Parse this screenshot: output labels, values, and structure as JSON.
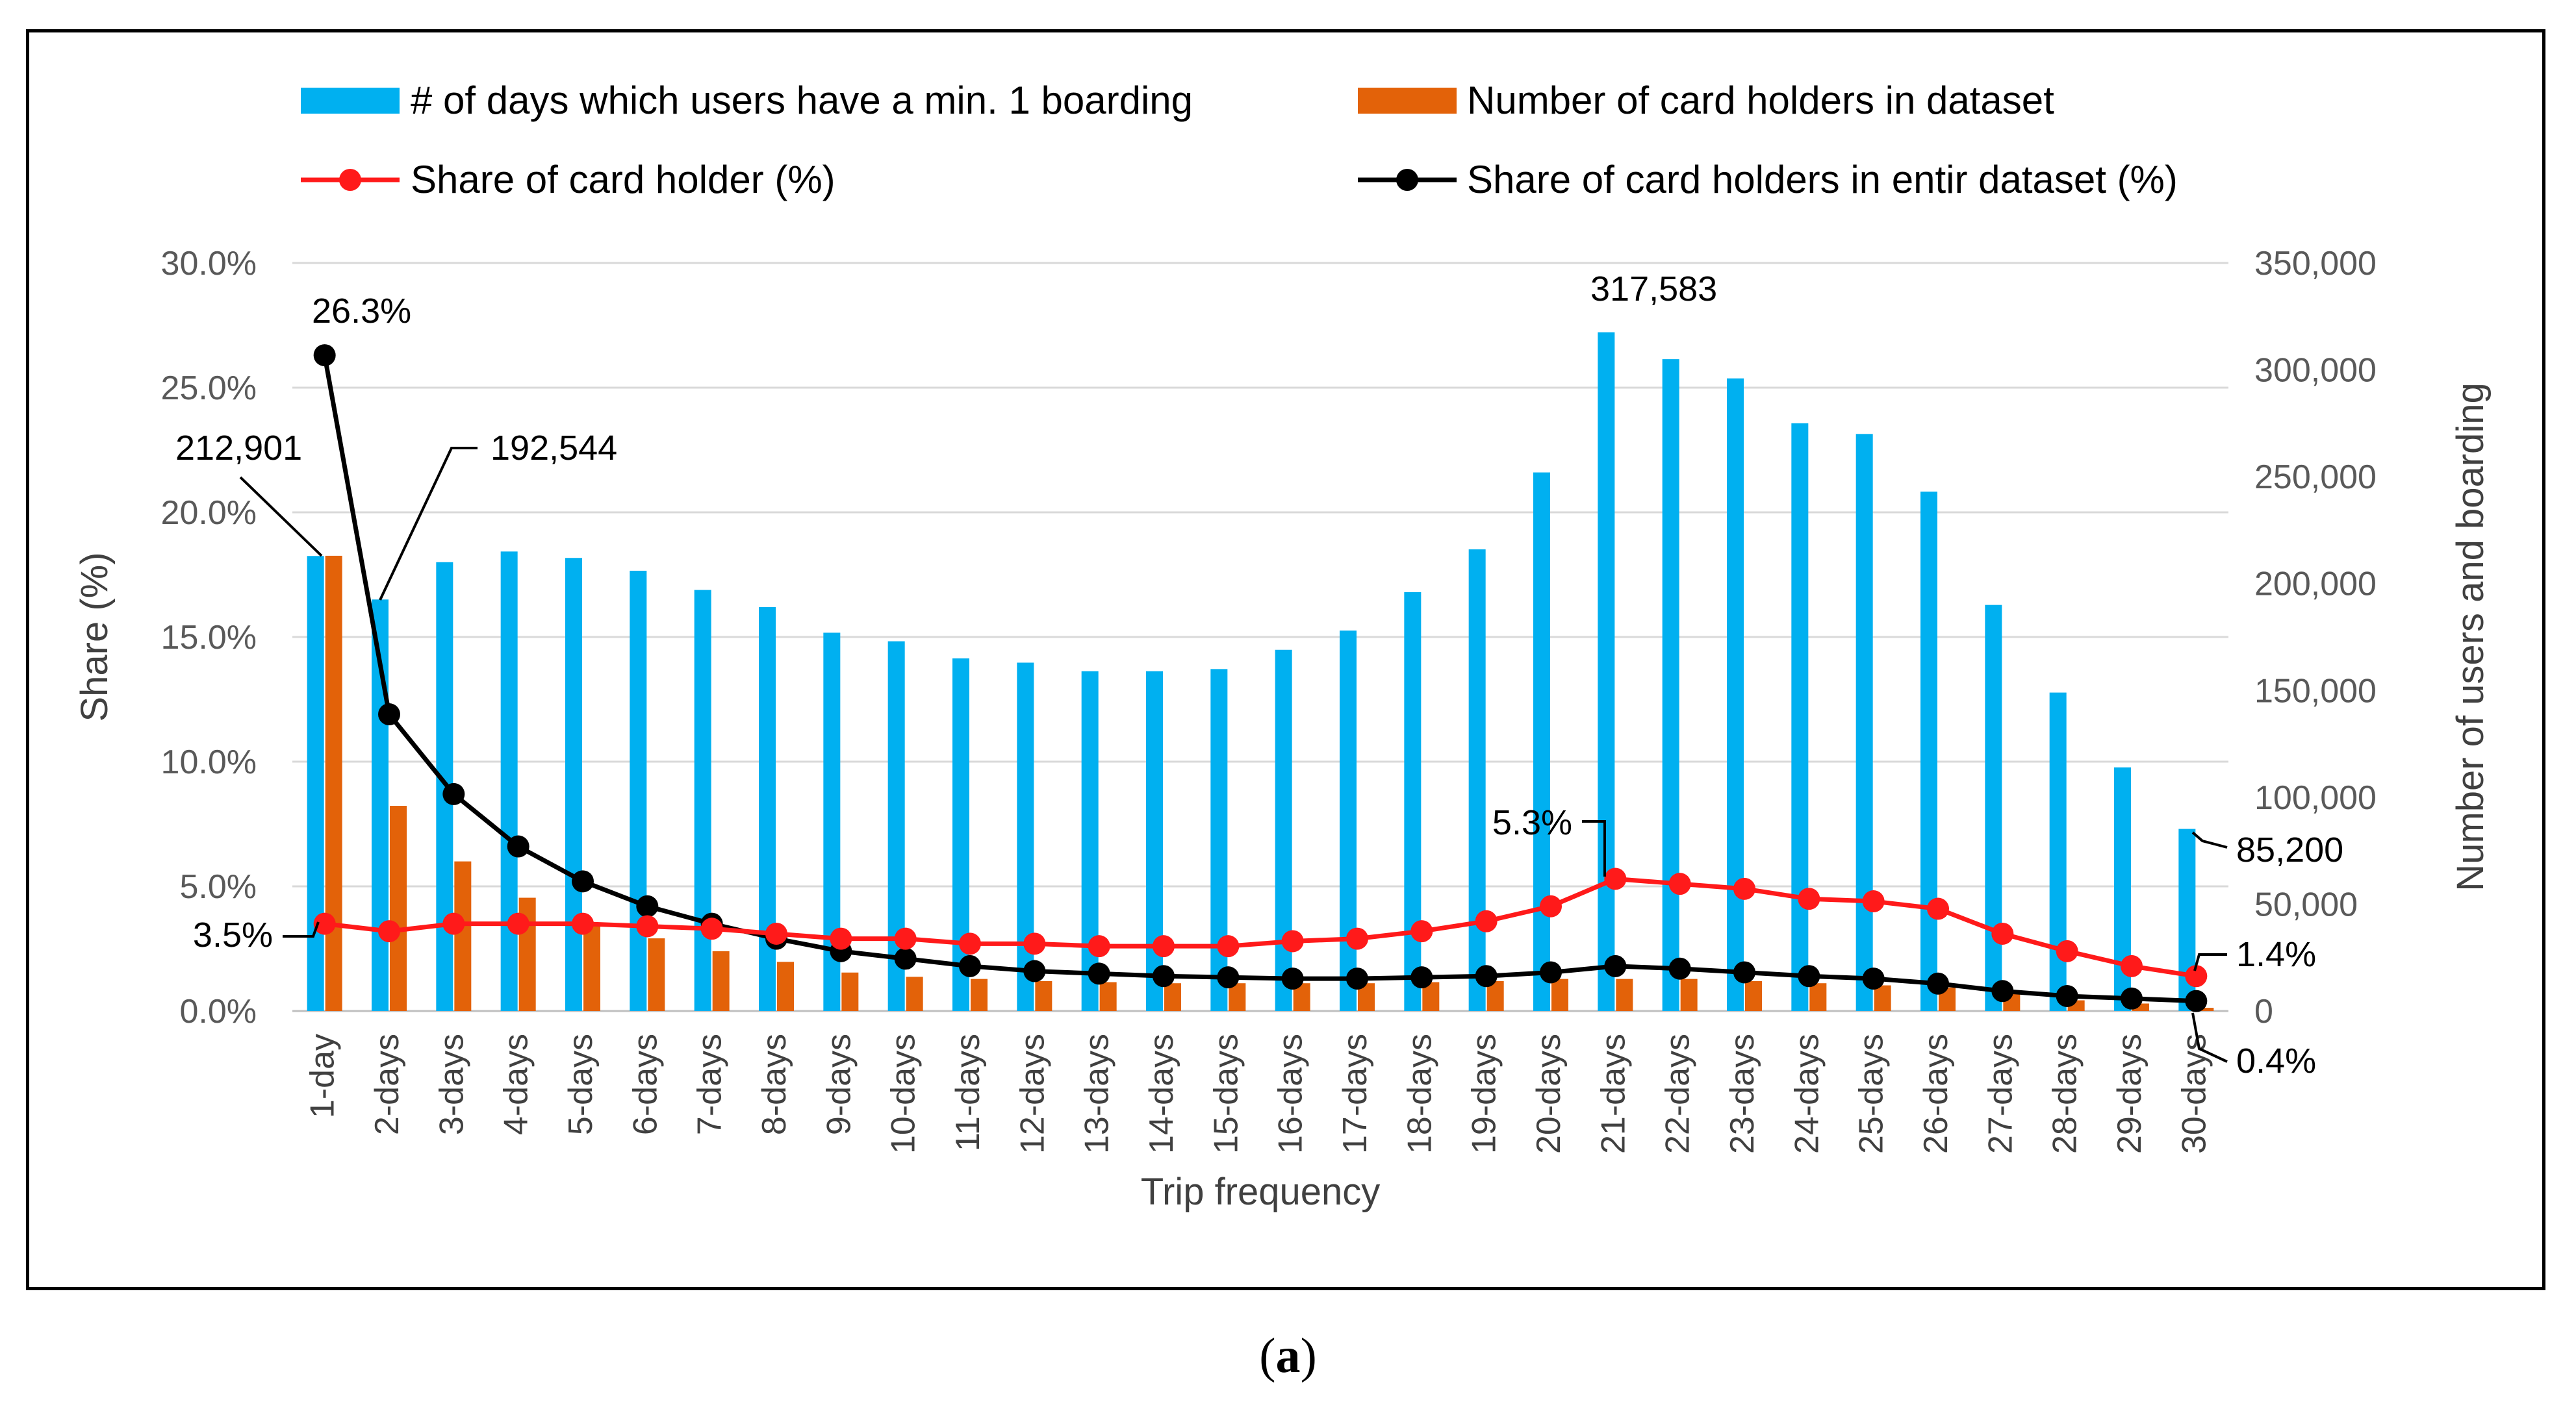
{
  "caption": {
    "open": "(",
    "letter": "a",
    "close": ")"
  },
  "colors": {
    "bar_days": "#00B0F0",
    "bar_holders": "#E36209",
    "line_share": "#FF1A1A",
    "line_entire": "#000000",
    "grid": "#D9D9D9",
    "axis_text": "#595959"
  },
  "chart_data": {
    "type": "bar+line",
    "title": "",
    "xlabel": "Trip frequency",
    "ylabel_left": "Share (%)",
    "ylabel_right": "Number of users and boarding",
    "ylim_left": [
      0,
      30
    ],
    "ylim_right": [
      0,
      350000
    ],
    "left_ticks": [
      "0.0%",
      "5.0%",
      "10.0%",
      "15.0%",
      "20.0%",
      "25.0%",
      "30.0%"
    ],
    "right_ticks": [
      "0",
      "50,000",
      "100,000",
      "150,000",
      "200,000",
      "250,000",
      "300,000",
      "350,000"
    ],
    "grid": true,
    "legend_position": "top",
    "categories": [
      "1-day",
      "2-days",
      "3-days",
      "4-days",
      "5-days",
      "6-days",
      "7-days",
      "8-days",
      "9-days",
      "10-days",
      "11-days",
      "12-days",
      "13-days",
      "14-days",
      "15-days",
      "16-days",
      "17-days",
      "18-days",
      "19-days",
      "20-days",
      "21-days",
      "22-days",
      "23-days",
      "24-days",
      "25-days",
      "26-days",
      "27-days",
      "28-days",
      "29-days",
      "30-days"
    ],
    "series": [
      {
        "name": "# of days which users have a min. 1 boarding",
        "kind": "bar",
        "axis": "right",
        "values": [
          212901,
          192544,
          210000,
          215000,
          212000,
          206000,
          197000,
          189000,
          177000,
          173000,
          165000,
          163000,
          159000,
          159000,
          160000,
          169000,
          178000,
          196000,
          216000,
          252000,
          317583,
          305000,
          296000,
          275000,
          270000,
          243000,
          190000,
          149000,
          114000,
          85200
        ]
      },
      {
        "name": "Number of card holders in dataset",
        "kind": "bar",
        "axis": "right",
        "values": [
          213000,
          96000,
          70000,
          53000,
          40000,
          34000,
          28000,
          23000,
          18000,
          16000,
          15000,
          14000,
          13500,
          13000,
          13000,
          13000,
          13000,
          13500,
          14000,
          15000,
          15000,
          15000,
          14000,
          13000,
          12000,
          11000,
          8000,
          5000,
          3500,
          1500
        ]
      },
      {
        "name": "Share of card holder (%)",
        "kind": "line",
        "axis": "left",
        "values": [
          3.5,
          3.2,
          3.5,
          3.5,
          3.5,
          3.4,
          3.3,
          3.1,
          2.9,
          2.9,
          2.7,
          2.7,
          2.6,
          2.6,
          2.6,
          2.8,
          2.9,
          3.2,
          3.6,
          4.2,
          5.3,
          5.1,
          4.9,
          4.5,
          4.4,
          4.1,
          3.1,
          2.4,
          1.8,
          1.4
        ]
      },
      {
        "name": "Share of card holders in entir dataset (%)",
        "kind": "line",
        "axis": "left",
        "values": [
          26.3,
          11.9,
          8.7,
          6.6,
          5.2,
          4.2,
          3.5,
          2.9,
          2.4,
          2.1,
          1.8,
          1.6,
          1.5,
          1.4,
          1.35,
          1.3,
          1.3,
          1.35,
          1.4,
          1.55,
          1.8,
          1.7,
          1.55,
          1.4,
          1.3,
          1.1,
          0.8,
          0.6,
          0.5,
          0.4
        ]
      }
    ],
    "annotations": [
      {
        "text": "26.3%"
      },
      {
        "text": "212,901"
      },
      {
        "text": "192,544"
      },
      {
        "text": "317,583"
      },
      {
        "text": "5.3%"
      },
      {
        "text": "3.5%"
      },
      {
        "text": "85,200"
      },
      {
        "text": "1.4%"
      },
      {
        "text": "0.4%"
      }
    ]
  }
}
